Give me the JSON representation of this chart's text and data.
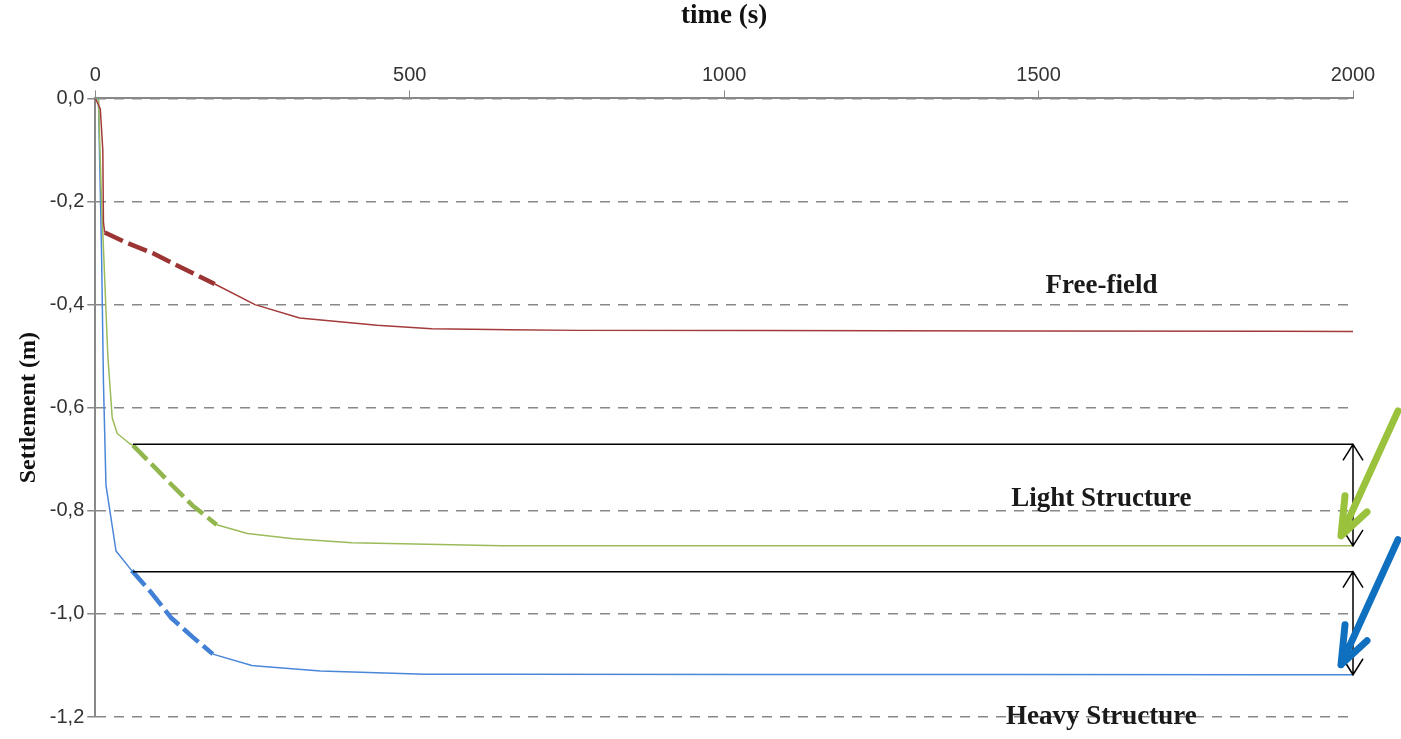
{
  "chart_data": {
    "type": "line",
    "xlabel": "time (s)",
    "ylabel": "Settlement (m)",
    "xlim": [
      0,
      2000
    ],
    "xticks": [
      0,
      500,
      1000,
      1500,
      2000
    ],
    "ylim": [
      -1.2,
      0
    ],
    "yticks": [
      {
        "value": 0,
        "label": "0,0"
      },
      {
        "value": -0.2,
        "label": "-0,2"
      },
      {
        "value": -0.4,
        "label": "-0,4"
      },
      {
        "value": -0.6,
        "label": "-0,6"
      },
      {
        "value": -0.8,
        "label": "-0,8"
      },
      {
        "value": -1.0,
        "label": "-1,0"
      },
      {
        "value": -1.2,
        "label": "-1,2"
      }
    ],
    "grid": "y",
    "legend": false,
    "marker": "none",
    "series": [
      {
        "name": "Free-field",
        "color": "#a33a3a",
        "line_style": "solid",
        "x": [
          0,
          8,
          12,
          13,
          15,
          100,
          190,
          254,
          325,
          448,
          535,
          768,
          2000
        ],
        "values": [
          0,
          -0.02,
          -0.1,
          -0.24,
          -0.26,
          null,
          -0.36,
          -0.4,
          -0.426,
          -0.44,
          -0.447,
          -0.45,
          -0.452
        ]
      },
      {
        "color": "#9c3434",
        "line_style": "dashed",
        "x": [
          15,
          50,
          91,
          140,
          190
        ],
        "values": [
          -0.26,
          -0.28,
          -0.3,
          -0.33,
          -0.36
        ]
      },
      {
        "color": "#000000",
        "line_style": "solid",
        "x": [
          60,
          2000
        ],
        "values": [
          -0.671,
          -0.671
        ]
      },
      {
        "name": "Light Structure",
        "color": "#9bbb59",
        "line_style": "solid",
        "x": [
          0,
          5,
          10,
          20,
          27,
          35,
          55,
          60,
          120,
          193,
          242,
          315,
          408,
          647,
          2000
        ],
        "values": [
          0,
          0,
          -0.2,
          -0.5,
          -0.62,
          -0.65,
          -0.67,
          -0.673,
          null,
          -0.827,
          -0.844,
          -0.854,
          -0.862,
          -0.868,
          -0.868
        ]
      },
      {
        "color": "#92b64e",
        "line_style": "dashed",
        "x": [
          60,
          90,
          121,
          155,
          193
        ],
        "values": [
          -0.673,
          -0.71,
          -0.749,
          -0.79,
          -0.827
        ]
      },
      {
        "color": "#000000",
        "line_style": "solid",
        "x": [
          60,
          2000
        ],
        "values": [
          -0.918,
          -0.918
        ]
      },
      {
        "name": "Heavy Structure",
        "color": "#4a86d8",
        "line_style": "solid",
        "x": [
          0,
          5,
          10,
          13,
          17,
          33,
          58,
          120,
          187,
          249,
          358,
          524,
          2000
        ],
        "values": [
          0,
          0,
          -0.3,
          -0.55,
          -0.75,
          -0.878,
          -0.916,
          null,
          -1.078,
          -1.1,
          -1.111,
          -1.117,
          -1.118
        ]
      },
      {
        "color": "#4280d6",
        "line_style": "dashed",
        "x": [
          58,
          90,
          121,
          155,
          187
        ],
        "values": [
          -0.916,
          -0.96,
          -1.008,
          -1.045,
          -1.078
        ]
      }
    ]
  }
}
